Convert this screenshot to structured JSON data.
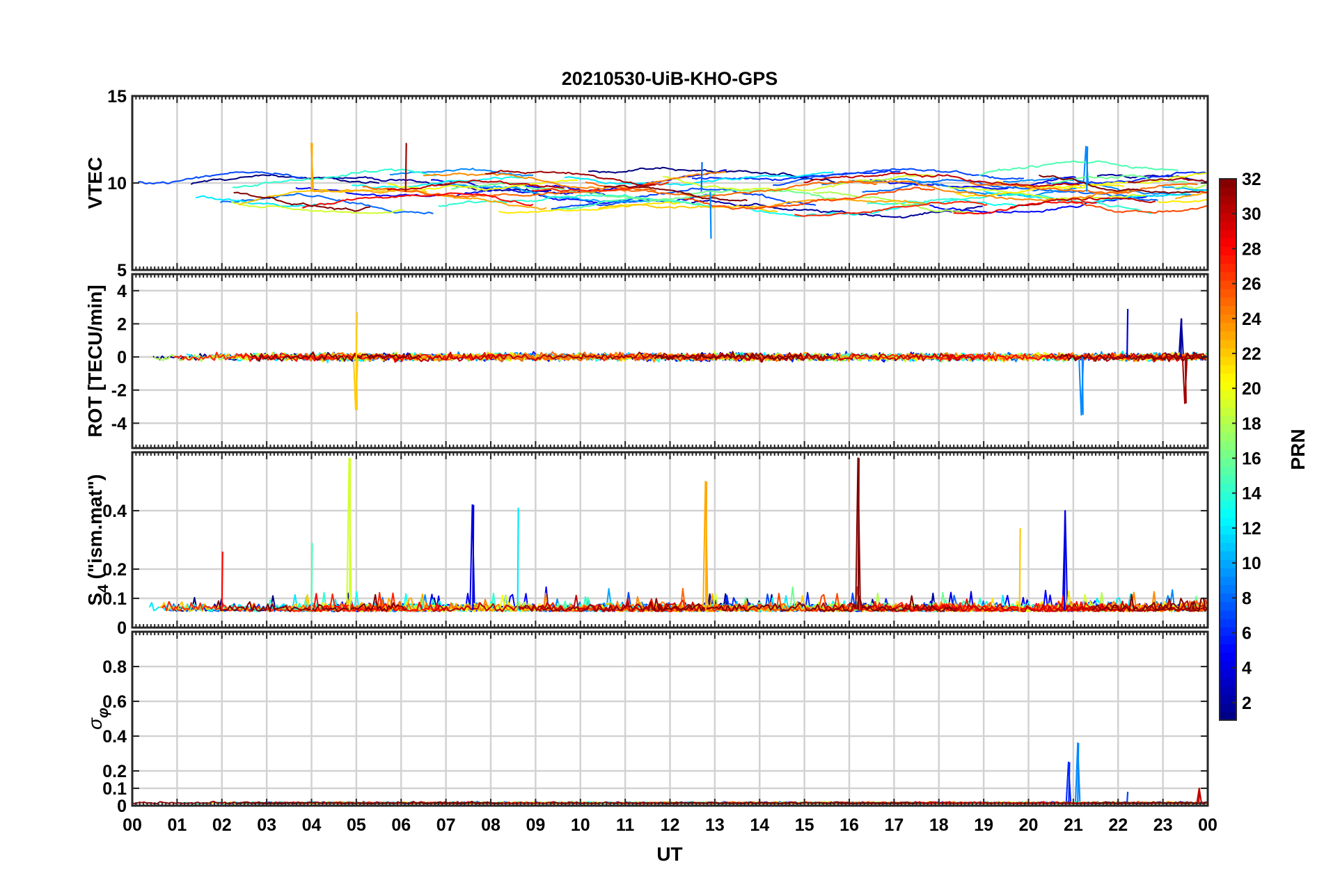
{
  "chart_data": {
    "type": "line",
    "title": "20210530-UiB-KHO-GPS",
    "xlabel": "UT",
    "x_tick_labels": [
      "00",
      "01",
      "02",
      "03",
      "04",
      "05",
      "06",
      "07",
      "08",
      "09",
      "10",
      "11",
      "12",
      "13",
      "14",
      "15",
      "16",
      "17",
      "18",
      "19",
      "20",
      "21",
      "22",
      "23",
      "00"
    ],
    "colorbar": {
      "label": "PRN",
      "range": [
        1,
        32
      ],
      "colormap": "jet",
      "tick_labels": [
        "2",
        "4",
        "6",
        "8",
        "10",
        "12",
        "14",
        "16",
        "18",
        "20",
        "22",
        "24",
        "26",
        "28",
        "30",
        "32"
      ]
    },
    "panels": [
      {
        "id": "vtec",
        "ylabel": "VTEC",
        "ylim": [
          5,
          15
        ],
        "yticks": [
          "5",
          "10",
          "15"
        ],
        "typical_level": 9.5,
        "events": [
          {
            "prn": 23,
            "ut": 4.0,
            "value": 12.3,
            "note": "arc peak"
          },
          {
            "prn": 31,
            "ut": 6.1,
            "value": 12.3,
            "note": "arc peak"
          },
          {
            "prn": 8,
            "ut": 12.7,
            "value": 11.2
          },
          {
            "prn": 9,
            "ut": 21.3,
            "value": 12.1
          },
          {
            "prn": 9,
            "ut": 12.9,
            "value": 6.8,
            "note": "minimum"
          }
        ]
      },
      {
        "id": "rot",
        "ylabel": "ROT [TECU/min]",
        "ylim": [
          -5.5,
          5
        ],
        "yticks": [
          "-4",
          "-2",
          "0",
          "2",
          "4"
        ],
        "typical_level": 0,
        "events": [
          {
            "prn": 22,
            "ut": 5.0,
            "value": 2.7
          },
          {
            "prn": 22,
            "ut": 5.0,
            "value": -3.2
          },
          {
            "prn": 9,
            "ut": 21.2,
            "value": -3.5
          },
          {
            "prn": 4,
            "ut": 22.2,
            "value": 2.9
          },
          {
            "prn": 31,
            "ut": 23.5,
            "value": -2.8
          },
          {
            "prn": 2,
            "ut": 23.4,
            "value": 2.3
          }
        ]
      },
      {
        "id": "s4",
        "ylabel": "S4 (\"ism.mat\")",
        "ylabel_parts": {
          "symbol": "S",
          "subscript": "4",
          "suffix": " (\"ism.mat\")"
        },
        "ylim": [
          0,
          0.6
        ],
        "yticks": [
          "0",
          "0.1",
          "0.2",
          "0.4"
        ],
        "typical_level": 0.06,
        "events": [
          {
            "prn": 19,
            "ut": 4.85,
            "value": 0.58
          },
          {
            "prn": 4,
            "ut": 7.6,
            "value": 0.42
          },
          {
            "prn": 12,
            "ut": 8.6,
            "value": 0.41
          },
          {
            "prn": 23,
            "ut": 12.8,
            "value": 0.5
          },
          {
            "prn": 32,
            "ut": 16.2,
            "value": 0.58
          },
          {
            "prn": 22,
            "ut": 19.8,
            "value": 0.34
          },
          {
            "prn": 4,
            "ut": 20.8,
            "value": 0.4
          },
          {
            "prn": 15,
            "ut": 4.0,
            "value": 0.29
          },
          {
            "prn": 28,
            "ut": 2.0,
            "value": 0.26
          }
        ]
      },
      {
        "id": "sigma_phi",
        "ylabel": "σφ",
        "ylabel_parts": {
          "symbol": "σ",
          "subscript": "φ"
        },
        "ylim": [
          0,
          1
        ],
        "yticks": [
          "0",
          "0.1",
          "0.2",
          "0.4",
          "0.6",
          "0.8"
        ],
        "typical_level": 0.02,
        "events": [
          {
            "prn": 9,
            "ut": 21.1,
            "value": 0.36
          },
          {
            "prn": 6,
            "ut": 20.9,
            "value": 0.25
          },
          {
            "prn": 7,
            "ut": 22.2,
            "value": 0.08
          },
          {
            "prn": 30,
            "ut": 23.8,
            "value": 0.1
          }
        ]
      }
    ]
  }
}
